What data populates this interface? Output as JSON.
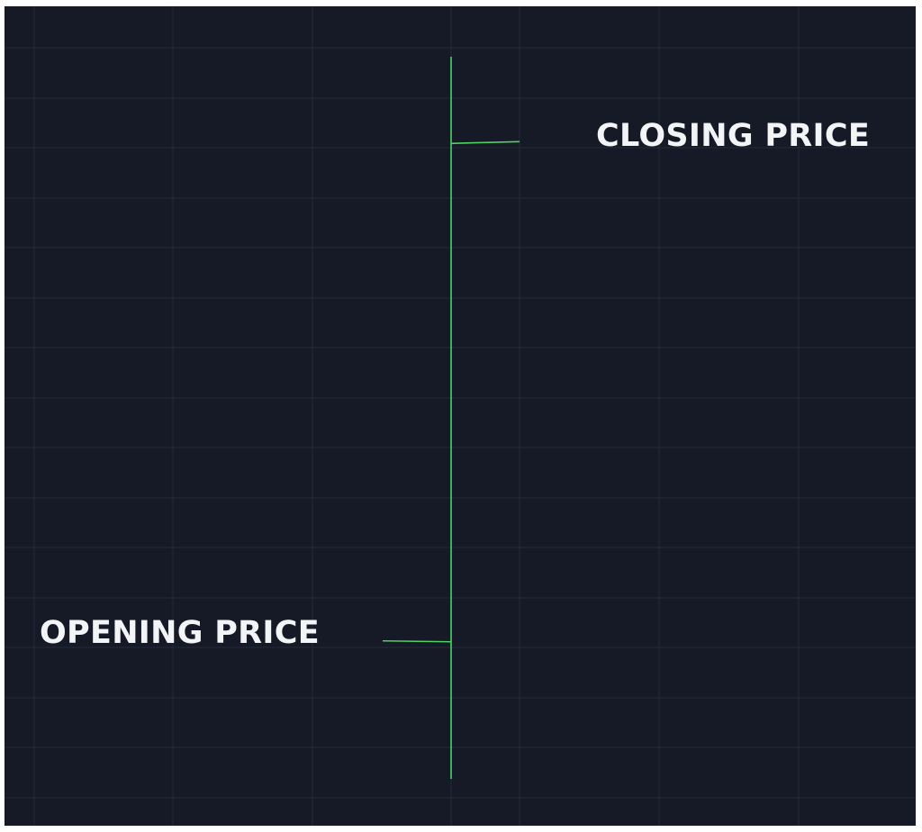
{
  "colors": {
    "background": "#161a27",
    "grid": "#262b3a",
    "bar": "#4fd165",
    "label_text": "#f3f4f6"
  },
  "labels": {
    "closing": "CLOSING PRICE",
    "opening": "OPENING PRICE"
  },
  "chart_data": {
    "type": "ohlc",
    "bars": [
      {
        "kind": "bullish",
        "open": 0.193,
        "close": 0.89,
        "high": 1.01,
        "low": 0.0
      }
    ],
    "grid": true
  }
}
